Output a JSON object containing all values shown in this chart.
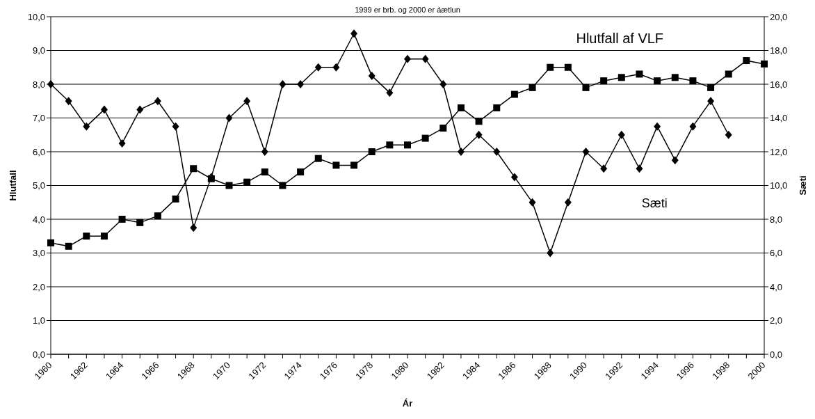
{
  "chart_data": {
    "type": "line",
    "subtitle": "1999 er brb. og 2000 er áætlun",
    "xlabel": "Ár",
    "ylabel": "Hlutfall",
    "y2label": "Sæti",
    "categories": [
      "1960",
      null,
      "1962",
      null,
      "1964",
      null,
      "1966",
      null,
      "1968",
      null,
      "1970",
      null,
      "1972",
      null,
      "1974",
      null,
      "1976",
      null,
      "1978",
      null,
      "1980",
      null,
      "1982",
      null,
      "1984",
      null,
      "1986",
      null,
      "1988",
      null,
      "1990",
      null,
      "1992",
      null,
      "1994",
      null,
      "1996",
      null,
      "1998",
      null,
      "2000"
    ],
    "series": [
      {
        "name": "Hlutfall af VLF",
        "color": "#000000",
        "marker": "square",
        "values": [
          3.3,
          3.2,
          3.5,
          3.5,
          4.0,
          3.9,
          4.1,
          4.6,
          5.5,
          5.2,
          5.0,
          5.1,
          5.4,
          5.0,
          5.4,
          5.8,
          5.6,
          5.6,
          6.0,
          6.2,
          6.2,
          6.4,
          6.7,
          7.3,
          6.9,
          7.3,
          7.7,
          7.9,
          8.5,
          8.5,
          7.9,
          8.1,
          8.2,
          8.3,
          8.1,
          8.2,
          8.1,
          7.9,
          8.3,
          8.7,
          8.6
        ]
      },
      {
        "name": "Sæti",
        "color": "#000000",
        "marker": "diamond",
        "axis": "y2",
        "values": [
          16,
          15,
          13.5,
          14.5,
          12.5,
          14.5,
          15,
          13.5,
          7.5,
          10.5,
          14,
          15,
          12,
          16,
          16,
          17,
          17,
          19,
          16.5,
          15.5,
          17.5,
          17.5,
          16,
          12,
          13,
          12,
          10.5,
          9,
          6,
          9,
          12,
          11,
          13,
          11,
          13.5,
          11.5,
          13.5,
          15,
          13,
          null,
          null
        ]
      }
    ],
    "ylim": [
      0,
      10
    ],
    "yticks": [
      {
        "value": 0,
        "label": "0,0"
      },
      {
        "value": 1,
        "label": "1,0"
      },
      {
        "value": 2,
        "label": "2,0"
      },
      {
        "value": 3,
        "label": "3,0"
      },
      {
        "value": 4,
        "label": "4,0"
      },
      {
        "value": 5,
        "label": "5,0"
      },
      {
        "value": 6,
        "label": "6,0"
      },
      {
        "value": 7,
        "label": "7,0"
      },
      {
        "value": 8,
        "label": "8,0"
      },
      {
        "value": 9,
        "label": "9,0"
      },
      {
        "value": 10,
        "label": "10,0"
      }
    ],
    "y2lim": [
      0,
      20
    ],
    "y2ticks": [
      {
        "value": 0,
        "label": "0,0"
      },
      {
        "value": 2,
        "label": "2,0"
      },
      {
        "value": 4,
        "label": "4,0"
      },
      {
        "value": 6,
        "label": "6,0"
      },
      {
        "value": 8,
        "label": "8,0"
      },
      {
        "value": 10,
        "label": "10,0"
      },
      {
        "value": 12,
        "label": "12,0"
      },
      {
        "value": 14,
        "label": "14,0"
      },
      {
        "value": 16,
        "label": "16,0"
      },
      {
        "value": 18,
        "label": "18,0"
      },
      {
        "value": 20,
        "label": "20,0"
      }
    ],
    "grid": "y"
  }
}
